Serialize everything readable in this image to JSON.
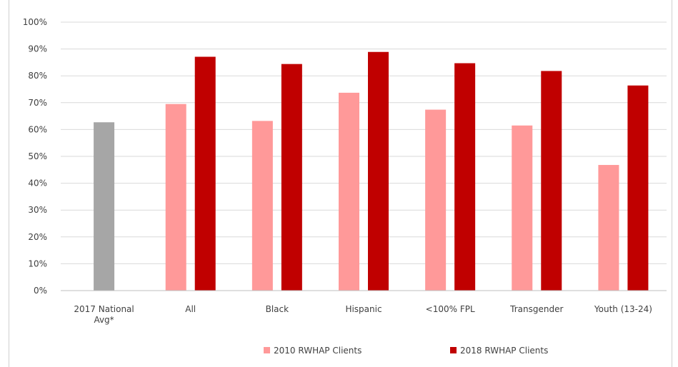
{
  "chart_data": {
    "type": "bar",
    "title": "",
    "xlabel": "",
    "ylabel": "",
    "ylim": [
      0,
      100
    ],
    "yticks": [
      "0%",
      "10%",
      "20%",
      "30%",
      "40%",
      "50%",
      "60%",
      "70%",
      "80%",
      "90%",
      "100%"
    ],
    "categories": [
      [
        "2017 National",
        "Avg*"
      ],
      [
        "All"
      ],
      [
        "Black"
      ],
      [
        "Hispanic"
      ],
      [
        "<100% FPL"
      ],
      [
        "Transgender"
      ],
      [
        "Youth (13-24)"
      ]
    ],
    "national_avg": {
      "value": 62.7,
      "color": "#a6a6a6"
    },
    "series": [
      {
        "name": "2010 RWHAP Clients",
        "color": "#ff9999",
        "values": [
          null,
          69.5,
          63.2,
          73.7,
          67.4,
          61.5,
          46.8
        ]
      },
      {
        "name": "2018  RWHAP Clients",
        "color": "#c00000",
        "values": [
          null,
          87.1,
          84.4,
          88.9,
          84.7,
          81.8,
          76.4
        ]
      }
    ],
    "grid": true,
    "legend": "bottom"
  }
}
